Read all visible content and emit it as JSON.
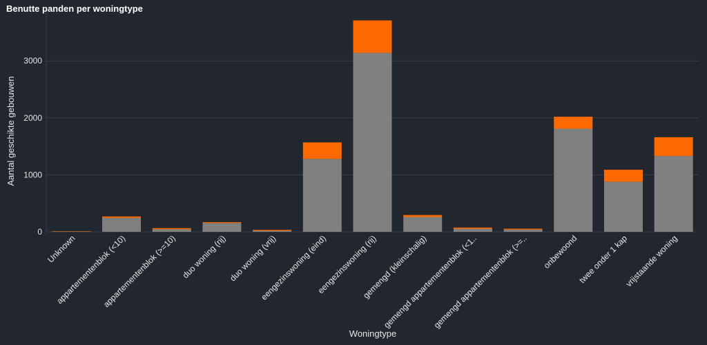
{
  "chart_data": {
    "type": "bar",
    "stacked": true,
    "title": "Benutte panden per woningtype",
    "xlabel": "Woningtype",
    "ylabel": "Aantal geschikte gebouwen",
    "ylim": [
      0,
      3850
    ],
    "yticks": [
      0,
      1000,
      2000,
      3000
    ],
    "grid": true,
    "categories": [
      "Unknown",
      "appartementenblok (<10)",
      "appartementenblok (>=10)",
      "duo woning (rij)",
      "duo woning (vrij)",
      "eengezinswoning (eind)",
      "eengezinswoning (rij)",
      "gemengd (kleinschalig)",
      "gemengd appartementenblok (<1..",
      "gemengd appartementenblok (>=..",
      "onbewoond",
      "twee onder 1 kap",
      "vrijstaande woning"
    ],
    "series": [
      {
        "color": "#808080",
        "values": [
          5,
          245,
          45,
          155,
          20,
          1280,
          3140,
          260,
          55,
          40,
          1810,
          880,
          1330
        ]
      },
      {
        "color": "#ff6a00",
        "values": [
          5,
          25,
          20,
          15,
          15,
          290,
          570,
          35,
          20,
          15,
          210,
          210,
          330
        ]
      }
    ]
  },
  "colors": {
    "background": "#22262e",
    "grid": "#3a3f48",
    "text": "#e6e6e6"
  }
}
